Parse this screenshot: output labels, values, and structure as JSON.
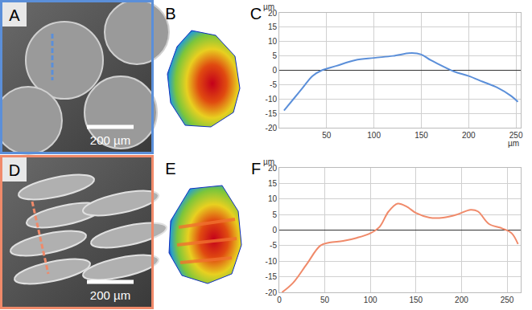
{
  "panels": [
    {
      "label": "A",
      "kind": "micrograph",
      "scale_bar": "200 µm",
      "color": "#5b8fd9",
      "shape": "round"
    },
    {
      "label": "B",
      "kind": "height_map",
      "shape": "round"
    },
    {
      "label": "D",
      "kind": "micrograph",
      "scale_bar": "200 µm",
      "color": "#f08a6a",
      "shape": "ridged"
    },
    {
      "label": "E",
      "kind": "height_map",
      "shape": "ridged"
    }
  ],
  "chart_data": [
    {
      "type": "line",
      "label": "C",
      "color": "#5b8fd9",
      "xlabel": "µm",
      "ylabel": "µm",
      "x": [
        5,
        15,
        25,
        35,
        45,
        60,
        80,
        100,
        120,
        140,
        150,
        160,
        175,
        185,
        200,
        215,
        230,
        245,
        252
      ],
      "values": [
        -14,
        -10,
        -6,
        -2,
        0,
        1.5,
        3.5,
        4.3,
        5,
        6,
        5.5,
        3.5,
        1,
        -0.5,
        -2,
        -4,
        -6,
        -9,
        -11
      ],
      "xlim": [
        0,
        255
      ],
      "xticks": [
        50,
        100,
        150,
        200,
        250
      ],
      "ylim": [
        -20,
        20
      ],
      "yticks": [
        -20,
        -15,
        -10,
        -5,
        0,
        5,
        10,
        15,
        20
      ],
      "grid": true
    },
    {
      "type": "line",
      "label": "F",
      "color": "#f08a6a",
      "ylabel": "µm",
      "x": [
        3,
        15,
        30,
        45,
        55,
        70,
        85,
        100,
        110,
        120,
        130,
        140,
        150,
        165,
        180,
        195,
        210,
        218,
        230,
        245,
        255,
        262
      ],
      "values": [
        -20,
        -17,
        -11,
        -5,
        -4,
        -3.5,
        -2.5,
        -1,
        1,
        6,
        8.5,
        7.5,
        5.5,
        4,
        4,
        5,
        6.5,
        6,
        2,
        0.5,
        -1,
        -4.5
      ],
      "xlim": [
        0,
        265
      ],
      "xticks": [
        0,
        50,
        100,
        150,
        200,
        250
      ],
      "ylim": [
        -20,
        20
      ],
      "yticks": [
        -20,
        -15,
        -10,
        -5,
        0,
        5,
        10,
        15,
        20
      ],
      "grid": true
    }
  ]
}
